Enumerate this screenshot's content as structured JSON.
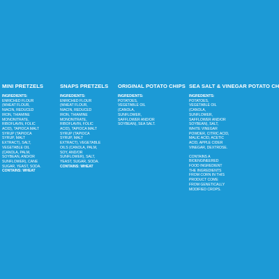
{
  "background_color": "#1c9ad6",
  "text_color": "#ffffff",
  "columns": [
    {
      "title": "MINI PRETZELS",
      "heading": "INGREDIENTS:",
      "lines": [
        "ENRICHED FLOUR",
        "(WHEAT FLOUR,",
        "NIACIN, REDUCED",
        "IRON, THIAMINE",
        "MONONITRATE,",
        "RIBOFLAVIN, FOLIC",
        "ACID), TAPIOCA MALT",
        "SYRUP (TAPIOCA",
        "SYRUP, MALT",
        "EXTRACT), SALT,",
        "VEGETABLE OIL",
        "(CANOLA, PALM,",
        "SOYBEAN, AND/OR",
        "SUNFLOWER), CANE",
        "SUGAR, YEAST, SODA."
      ],
      "contains": "CONTAINS: WHEAT"
    },
    {
      "title": "SNAPS PRETZELS",
      "heading": "INGREDIENTS:",
      "lines": [
        "ENRICHED FLOUR",
        "(WHEAT FLOUR,",
        "NIACIN, REDUCED",
        "IRON, THIAMINE",
        "MONONITRATE,",
        "RIBOFLAVIN, FOLIC",
        "ACID), TAPIOCA MALT",
        "SYRUP (TAPIOCA",
        "SYRUP, MALT",
        "EXTRACT), VEGETABLE",
        "OILS (CANOLA, PALM,",
        "SOY, AND/OR",
        "SUNFLOWER), SALT,",
        "YEAST, SUGAR, SODA."
      ],
      "contains": "CONTAINS: WHEAT"
    },
    {
      "title": "ORIGINAL POTATO CHIPS",
      "heading": "INGREDIENTS:",
      "lines": [
        "POTATOES,",
        "VEGETABLE OIL",
        "(CANOLA,",
        "SUNFLOWER,",
        "SAFFLOWER AND/OR",
        "SOYBEAN), SEA SALT."
      ]
    },
    {
      "title": "SEA SALT & VINEGAR POTATO CHIPS",
      "heading": "INGREDIENTS:",
      "lines": [
        "POTATOES,",
        "VEGETABLE OIL",
        "(CANOLA,",
        "SUNFLOWER,",
        "SAFFLOWER AND/OR",
        "SOYBEAN), SALT,",
        "WHITE VINEGAR",
        "POWDER, CITRIC ACID,",
        "MALIC ACID, ACETIC",
        "ACID, APPLE CIDER",
        "VINEGAR, DEXTROSE."
      ],
      "note_lines": [
        "CONTAINS A",
        "BIOENGINEERED",
        "FOOD INGREDIENT",
        "THE INGREDIENTS",
        "FROM CORN IN THIS",
        "PRODUCT COME",
        "FROM GENETICALLY",
        "MODIFIED CROPS."
      ]
    }
  ]
}
